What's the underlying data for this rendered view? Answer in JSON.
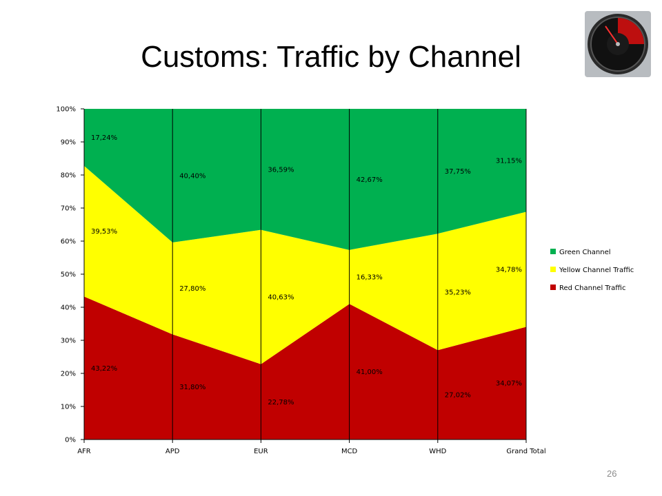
{
  "slide": {
    "title": "Customs: Traffic by Channel",
    "page_number": "26"
  },
  "logo": {
    "icon": "speedometer-gauge-icon"
  },
  "chart_data": {
    "type": "area",
    "stacked": "100%",
    "categories": [
      "AFR",
      "APD",
      "EUR",
      "MCD",
      "WHD",
      "Grand Total"
    ],
    "series": [
      {
        "name": "Red Channel Traffic",
        "color": "#c00000",
        "values": [
          43.22,
          31.8,
          22.78,
          41.0,
          27.02,
          34.07
        ],
        "labels": [
          "43,22%",
          "31,80%",
          "22,78%",
          "41,00%",
          "27,02%",
          "34,07%"
        ]
      },
      {
        "name": "Yellow Channel Traffic",
        "color": "#ffff00",
        "values": [
          39.53,
          27.8,
          40.63,
          16.33,
          35.23,
          34.78
        ],
        "labels": [
          "39,53%",
          "27,80%",
          "40,63%",
          "16,33%",
          "35,23%",
          "34,78%"
        ]
      },
      {
        "name": "Green Channel",
        "color": "#00b050",
        "values": [
          17.24,
          40.4,
          36.59,
          42.67,
          37.75,
          31.15
        ],
        "labels": [
          "17,24%",
          "40,40%",
          "36,59%",
          "42,67%",
          "37,75%",
          "31,15%"
        ]
      }
    ],
    "yticks": [
      "0%",
      "10%",
      "20%",
      "30%",
      "40%",
      "50%",
      "60%",
      "70%",
      "80%",
      "90%",
      "100%"
    ],
    "ylim": [
      0,
      100
    ],
    "legend_position": "right",
    "legend_order": [
      "Green Channel",
      "Yellow Channel Traffic",
      "Red Channel Traffic"
    ],
    "grid": false,
    "drop_lines": true
  }
}
